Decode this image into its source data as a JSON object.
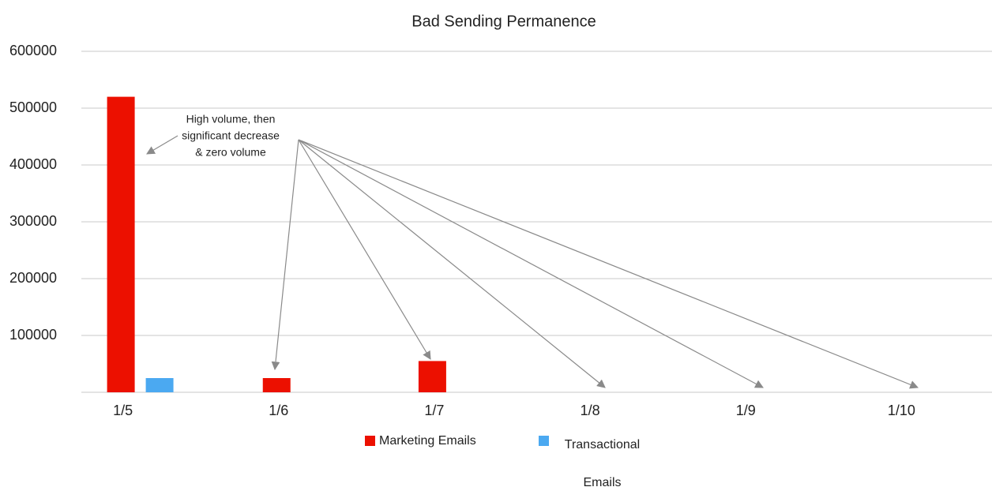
{
  "chart_data": {
    "type": "bar",
    "title": "Bad Sending Permanence",
    "categories": [
      "1/5",
      "1/6",
      "1/7",
      "1/8",
      "1/9",
      "1/10"
    ],
    "series": [
      {
        "name": "Marketing Emails",
        "color": "#ec1000",
        "values": [
          520000,
          25000,
          55000,
          0,
          0,
          0
        ]
      },
      {
        "name": "Transactional Emails",
        "color": "#4ba9f1",
        "values": [
          25000,
          0,
          0,
          0,
          0,
          0
        ]
      }
    ],
    "ylim": [
      0,
      600000
    ],
    "yticks": [
      100000,
      200000,
      300000,
      400000,
      500000,
      600000
    ],
    "grid": true,
    "annotation": [
      "High volume, then",
      "significant decrease",
      "& zero volume"
    ]
  }
}
